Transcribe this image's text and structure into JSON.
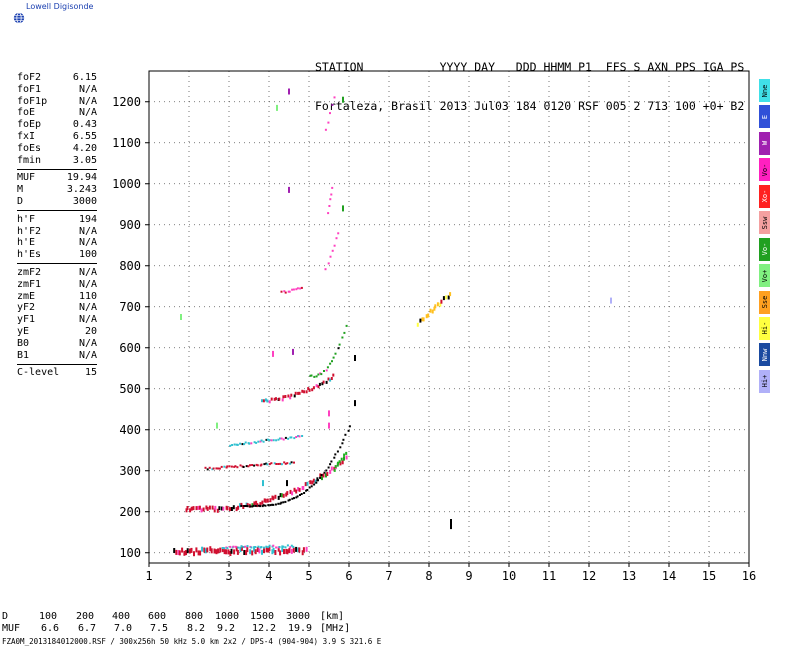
{
  "logo": {
    "text": "Lowell Digisonde"
  },
  "header": {
    "line1": "STATION           YYYY DAY   DDD HHMM P1  FFS S AXN PPS IGA PS",
    "line2": "Fortaleza, Brasil 2013 Jul03 184 0120 RSF 005 2 713 100 +0+ B2"
  },
  "params": [
    [
      {
        "label": "foF2",
        "value": "6.15"
      },
      {
        "label": "foF1",
        "value": "N/A"
      },
      {
        "label": "foF1p",
        "value": "N/A"
      },
      {
        "label": "foE",
        "value": "N/A"
      },
      {
        "label": "foEp",
        "value": "0.43"
      },
      {
        "label": "fxI",
        "value": "6.55"
      },
      {
        "label": "foEs",
        "value": "4.20"
      },
      {
        "label": "fmin",
        "value": "3.05"
      }
    ],
    [
      {
        "label": "MUF",
        "value": "19.94"
      },
      {
        "label": "M",
        "value": "3.243"
      },
      {
        "label": "D",
        "value": "3000"
      }
    ],
    [
      {
        "label": "h'F",
        "value": "194"
      },
      {
        "label": "h'F2",
        "value": "N/A"
      },
      {
        "label": "h'E",
        "value": "N/A"
      },
      {
        "label": "h'Es",
        "value": "100"
      }
    ],
    [
      {
        "label": "zmF2",
        "value": "N/A"
      },
      {
        "label": "zmF1",
        "value": "N/A"
      },
      {
        "label": "zmE",
        "value": "110"
      },
      {
        "label": "yF2",
        "value": "N/A"
      },
      {
        "label": "yF1",
        "value": "N/A"
      },
      {
        "label": "yE",
        "value": "20"
      },
      {
        "label": "B0",
        "value": "N/A"
      },
      {
        "label": "B1",
        "value": "N/A"
      }
    ],
    [
      {
        "label": "C-level",
        "value": "15"
      }
    ]
  ],
  "legend": [
    {
      "label": "Nne",
      "color": "#40e0e8"
    },
    {
      "label": "E",
      "color": "#3050d8"
    },
    {
      "label": "W",
      "color": "#a020b0"
    },
    {
      "label": "Vo-",
      "color": "#ff20c0"
    },
    {
      "label": "Xo-",
      "color": "#ff2020"
    },
    {
      "label": "Ssw",
      "color": "#f4a0a0"
    },
    {
      "label": "Vo-",
      "color": "#20a020"
    },
    {
      "label": "Vo+",
      "color": "#80f080"
    },
    {
      "label": "Sse",
      "color": "#ffa020"
    },
    {
      "label": "Hi-",
      "color": "#ffff40"
    },
    {
      "label": "Nnw",
      "color": "#1a4aa0"
    },
    {
      "label": "Hi+",
      "color": "#b0b0f8"
    }
  ],
  "bottom": {
    "d_label": "D",
    "muf_label": "MUF",
    "d_values": [
      "100",
      "200",
      "400",
      "600",
      "800",
      "1000",
      "1500",
      "3000"
    ],
    "muf_values": [
      "6.6",
      "6.7",
      "7.0",
      "7.5",
      "8.2",
      "9.2",
      "12.2",
      "19.9"
    ],
    "d_unit": "[km]",
    "muf_unit": "[MHz]"
  },
  "filename": "FZA0M_2013184012000.RSF / 300x256h 50 kHz 5.0 km 2x2 / DPS-4 (904-904)   3.9 S 321.6 E",
  "chart_data": {
    "type": "scatter",
    "title": "",
    "xlabel": "",
    "ylabel": "",
    "xlim": [
      1,
      16
    ],
    "ylim": [
      75,
      1275
    ],
    "x_ticks": [
      1,
      2,
      3,
      4,
      5,
      6,
      7,
      8,
      9,
      10,
      11,
      12,
      13,
      14,
      15,
      16
    ],
    "y_ticks": [
      100,
      200,
      300,
      400,
      500,
      600,
      700,
      800,
      900,
      1000,
      1100,
      1200
    ],
    "grid": true,
    "traces": [
      {
        "name": "E-layer echo",
        "x0": 1.6,
        "x1": 4.9,
        "y0": 103,
        "y1": 106,
        "thick": 5,
        "color": "#d01030",
        "alt": [
          "#30c0d0",
          "#ff40c0",
          "#000000"
        ]
      },
      {
        "name": "Es echo extra",
        "x0": 2.8,
        "x1": 4.6,
        "y0": 113,
        "y1": 116,
        "thick": 2,
        "color": "#30c0d0",
        "alt": [
          "#ff40c0"
        ]
      },
      {
        "name": "F-layer 1st hop",
        "x0": 1.9,
        "x1": 5.9,
        "y0": 205,
        "y1": 330,
        "curve": 2.6,
        "thick": 4,
        "color": "#d01030",
        "alt": [
          "#30c0d0",
          "#000000",
          "#ff40c0",
          "#20a020"
        ]
      },
      {
        "name": "F-layer 1st hop x-trace",
        "x0": 3.3,
        "x1": 6.0,
        "y0": 215,
        "y1": 410,
        "curve": 3.2,
        "thick": 1,
        "color": "#000000",
        "alt": []
      },
      {
        "name": "green cusp",
        "x0": 5.6,
        "x1": 5.9,
        "y0": 300,
        "y1": 345,
        "curve": 1,
        "thick": 3,
        "color": "#20b020",
        "alt": []
      },
      {
        "name": "Es 2nd hop",
        "x0": 2.4,
        "x1": 4.6,
        "y0": 305,
        "y1": 320,
        "curve": 1,
        "thick": 2,
        "color": "#d01030",
        "alt": [
          "#30c0d0",
          "#000000"
        ]
      },
      {
        "name": "Es 3rd hop",
        "x0": 3.0,
        "x1": 4.8,
        "y0": 362,
        "y1": 384,
        "curve": 1,
        "thick": 2,
        "color": "#30c0d0",
        "alt": [
          "#000000",
          "#ff40c0"
        ]
      },
      {
        "name": "F-layer 2nd hop",
        "x0": 3.8,
        "x1": 5.6,
        "y0": 470,
        "y1": 530,
        "curve": 1.8,
        "thick": 3,
        "color": "#d01030",
        "alt": [
          "#000000",
          "#ff40c0",
          "#30c0d0"
        ]
      },
      {
        "name": "F 2nd hop x-trace",
        "x0": 5.0,
        "x1": 5.9,
        "y0": 530,
        "y1": 655,
        "curve": 2.5,
        "thick": 2,
        "color": "#20a020",
        "alt": [
          "#ff40c0",
          "#000000"
        ]
      },
      {
        "name": "F 3rd hop",
        "x0": 4.3,
        "x1": 4.8,
        "y0": 735,
        "y1": 745,
        "curve": 1,
        "thick": 2,
        "color": "#ff40c0",
        "alt": [
          "#d01030"
        ]
      },
      {
        "name": "F 4th hop",
        "x0": 5.4,
        "x1": 5.7,
        "y0": 790,
        "y1": 880,
        "curve": 1,
        "thick": 2,
        "color": "#ff40c0",
        "alt": [
          "#20a020"
        ]
      },
      {
        "name": "High streak",
        "x0": 5.4,
        "x1": 5.6,
        "y0": 1130,
        "y1": 1210,
        "curve": 1,
        "thick": 2,
        "color": "#ff40c0",
        "alt": [
          "#a020b0"
        ]
      },
      {
        "name": "Mid streak",
        "x0": 5.45,
        "x1": 5.55,
        "y0": 930,
        "y1": 990,
        "curve": 1,
        "thick": 2,
        "color": "#ff40c0",
        "alt": []
      },
      {
        "name": "Oblique echo",
        "x0": 7.7,
        "x1": 8.5,
        "y0": 660,
        "y1": 730,
        "curve": 1,
        "thick": 4,
        "color": "#ffc020",
        "alt": [
          "#d01030",
          "#000000",
          "#ffff40"
        ]
      }
    ],
    "points": [
      {
        "x": 1.8,
        "y": 675,
        "color": "#80f080"
      },
      {
        "x": 12.55,
        "y": 715,
        "color": "#b0b0f8"
      },
      {
        "x": 4.5,
        "y": 1225,
        "color": "#a020b0"
      },
      {
        "x": 4.2,
        "y": 1185,
        "color": "#80f080"
      },
      {
        "x": 4.5,
        "y": 985,
        "color": "#a020b0"
      },
      {
        "x": 5.85,
        "y": 1205,
        "color": "#20a020"
      },
      {
        "x": 5.85,
        "y": 940,
        "color": "#20a020"
      },
      {
        "x": 4.1,
        "y": 585,
        "color": "#ff40c0"
      },
      {
        "x": 4.6,
        "y": 590,
        "color": "#a020b0"
      },
      {
        "x": 6.15,
        "y": 575,
        "color": "#000000"
      },
      {
        "x": 6.15,
        "y": 465,
        "color": "#000000"
      },
      {
        "x": 5.5,
        "y": 440,
        "color": "#ff40c0"
      },
      {
        "x": 5.5,
        "y": 410,
        "color": "#ff40c0"
      },
      {
        "x": 3.85,
        "y": 270,
        "color": "#30c0d0"
      },
      {
        "x": 4.45,
        "y": 270,
        "color": "#000000"
      },
      {
        "x": 8.55,
        "y": 175,
        "color": "#000000"
      },
      {
        "x": 8.55,
        "y": 165,
        "color": "#000000"
      },
      {
        "x": 2.7,
        "y": 410,
        "color": "#80f080"
      }
    ]
  }
}
